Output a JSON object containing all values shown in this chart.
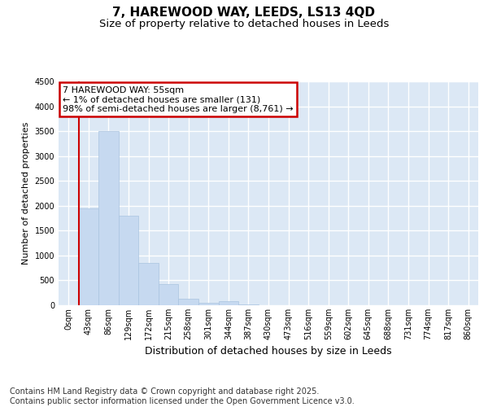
{
  "title1": "7, HAREWOOD WAY, LEEDS, LS13 4QD",
  "title2": "Size of property relative to detached houses in Leeds",
  "xlabel": "Distribution of detached houses by size in Leeds",
  "ylabel": "Number of detached properties",
  "bar_labels": [
    "0sqm",
    "43sqm",
    "86sqm",
    "129sqm",
    "172sqm",
    "215sqm",
    "258sqm",
    "301sqm",
    "344sqm",
    "387sqm",
    "430sqm",
    "473sqm",
    "516sqm",
    "559sqm",
    "602sqm",
    "645sqm",
    "688sqm",
    "731sqm",
    "774sqm",
    "817sqm",
    "860sqm"
  ],
  "bar_values": [
    0,
    1950,
    3500,
    1800,
    850,
    430,
    130,
    50,
    80,
    20,
    0,
    0,
    0,
    0,
    0,
    0,
    0,
    0,
    0,
    0,
    0
  ],
  "bar_color": "#c6d9f0",
  "bar_edge_color": "#aac4e0",
  "background_color": "#dce8f5",
  "grid_color": "#ffffff",
  "annotation_box_color": "#cc0000",
  "annotation_text": "7 HAREWOOD WAY: 55sqm\n← 1% of detached houses are smaller (131)\n98% of semi-detached houses are larger (8,761) →",
  "vline_color": "#cc0000",
  "vline_x_index": 1,
  "ylim": [
    0,
    4500
  ],
  "yticks": [
    0,
    500,
    1000,
    1500,
    2000,
    2500,
    3000,
    3500,
    4000,
    4500
  ],
  "footnote": "Contains HM Land Registry data © Crown copyright and database right 2025.\nContains public sector information licensed under the Open Government Licence v3.0.",
  "title_fontsize": 11,
  "subtitle_fontsize": 9.5,
  "annotation_fontsize": 8,
  "footnote_fontsize": 7,
  "ylabel_fontsize": 8,
  "xlabel_fontsize": 9,
  "tick_fontsize": 7
}
